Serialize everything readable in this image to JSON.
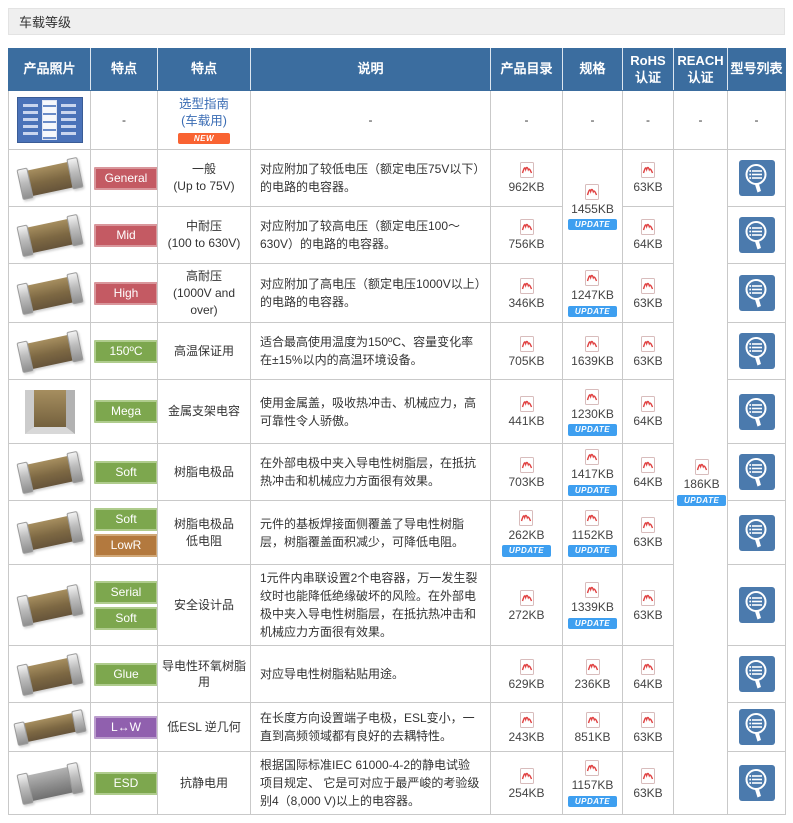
{
  "title_bar": {
    "label": "车载等级"
  },
  "colors": {
    "header_bg": "#3b6d9f",
    "badge_red": "#c45a63",
    "badge_green": "#7da74e",
    "badge_brown": "#b3793e",
    "badge_purple": "#9060ae",
    "update_badge": "#3e9ff0",
    "new_badge": "#f96332",
    "link_blue": "#3a6cb4",
    "model_tile": "#4b7aad"
  },
  "table": {
    "headers": [
      "产品照片",
      "特点",
      "特点",
      "说明",
      "产品目录",
      "规格",
      "RoHS\n认证",
      "REACH\n认证",
      "型号列表"
    ],
    "update_label": "UPDATE",
    "new_label": "NEW",
    "dash": "-",
    "guide_row": {
      "badge": "-",
      "link": "选型指南",
      "link_sub": "(车载用)",
      "desc": "-",
      "catalog": "-",
      "spec": "-",
      "rohs": "-",
      "reach": "-",
      "model": "-"
    },
    "reach_file": {
      "size": "186KB",
      "update": true,
      "rowspan": 11
    },
    "rows": [
      {
        "photo": "chip",
        "badges": [
          {
            "label": "General",
            "style": "red"
          }
        ],
        "name": "一般\n(Up to 75V)",
        "desc": "对应附加了较低电压（额定电压75V以下）的电路的电容器。",
        "catalog": {
          "size": "962KB"
        },
        "spec": {
          "size": "1455KB",
          "update": true,
          "rowspan": 2
        },
        "rohs": {
          "size": "63KB"
        }
      },
      {
        "photo": "chip",
        "badges": [
          {
            "label": "Mid",
            "style": "red"
          }
        ],
        "name": "中耐压\n(100 to 630V)",
        "desc": "对应附加了较高电压（额定电压100～630V）的电路的电容器。",
        "catalog": {
          "size": "756KB"
        },
        "rohs": {
          "size": "64KB"
        }
      },
      {
        "photo": "chip",
        "badges": [
          {
            "label": "High",
            "style": "red"
          }
        ],
        "name": "高耐压\n(1000V and over)",
        "desc": "对应附加了高电压（额定电压1000V以上）的电路的电容器。",
        "catalog": {
          "size": "346KB"
        },
        "spec": {
          "size": "1247KB",
          "update": true
        },
        "rohs": {
          "size": "63KB"
        }
      },
      {
        "photo": "chip",
        "badges": [
          {
            "label": "150ºC",
            "style": "green"
          }
        ],
        "name": "高温保证用",
        "desc": "适合最高使用温度为150ºC、容量变化率在±15%以内的高温环境设备。",
        "catalog": {
          "size": "705KB"
        },
        "spec": {
          "size": "1639KB"
        },
        "rohs": {
          "size": "63KB"
        }
      },
      {
        "photo": "mega",
        "badges": [
          {
            "label": "Mega",
            "style": "green"
          }
        ],
        "name": "金属支架电容",
        "desc": "使用金属盖，吸收热冲击、机械应力，高可靠性令人骄傲。",
        "catalog": {
          "size": "441KB"
        },
        "spec": {
          "size": "1230KB",
          "update": true
        },
        "rohs": {
          "size": "64KB"
        }
      },
      {
        "photo": "chip",
        "badges": [
          {
            "label": "Soft",
            "style": "green"
          }
        ],
        "name": "树脂电极品",
        "desc": "在外部电极中夹入导电性树脂层，在抵抗热冲击和机械应力方面很有效果。",
        "catalog": {
          "size": "703KB"
        },
        "spec": {
          "size": "1417KB",
          "update": true
        },
        "rohs": {
          "size": "64KB"
        }
      },
      {
        "photo": "chip",
        "badges": [
          {
            "label": "Soft",
            "style": "green"
          },
          {
            "label": "LowR",
            "style": "brown"
          }
        ],
        "name": "树脂电极品\n低电阻",
        "desc": "元件的基板焊接面侧覆盖了导电性树脂层，树脂覆盖面积减少，可降低电阻。",
        "catalog": {
          "size": "262KB",
          "update": true
        },
        "spec": {
          "size": "1152KB",
          "update": true
        },
        "rohs": {
          "size": "63KB"
        }
      },
      {
        "photo": "chip",
        "badges": [
          {
            "label": "Serial",
            "style": "green"
          },
          {
            "label": "Soft",
            "style": "green"
          }
        ],
        "name": "安全设计品",
        "desc": "1元件内串联设置2个电容器，万一发生裂纹时也能降低绝缘破坏的风险。在外部电极中夹入导电性树脂层，在抵抗热冲击和机械应力方面很有效果。",
        "catalog": {
          "size": "272KB"
        },
        "spec": {
          "size": "1339KB",
          "update": true
        },
        "rohs": {
          "size": "63KB"
        }
      },
      {
        "photo": "chip",
        "badges": [
          {
            "label": "Glue",
            "style": "green"
          }
        ],
        "name": "导电性环氧树脂用",
        "desc": "对应导电性树脂粘贴用途。",
        "catalog": {
          "size": "629KB"
        },
        "spec": {
          "size": "236KB"
        },
        "rohs": {
          "size": "64KB"
        }
      },
      {
        "photo": "chip-long",
        "badges": [
          {
            "label": "L↔W",
            "style": "purple"
          }
        ],
        "name": "低ESL 逆几何",
        "desc": "在长度方向设置端子电极，ESL变小，一直到高频领域都有良好的去耦特性。",
        "catalog": {
          "size": "243KB"
        },
        "spec": {
          "size": "851KB"
        },
        "rohs": {
          "size": "63KB"
        }
      },
      {
        "photo": "chip-gray",
        "badges": [
          {
            "label": "ESD",
            "style": "green"
          }
        ],
        "name": "抗静电用",
        "desc": "根据国际标准IEC 61000-4-2的静电试验项目规定、 它是可对应于最严峻的考验级别4（8,000 V)以上的电容器。",
        "catalog": {
          "size": "254KB"
        },
        "spec": {
          "size": "1157KB",
          "update": true
        },
        "rohs": {
          "size": "63KB"
        }
      }
    ]
  }
}
